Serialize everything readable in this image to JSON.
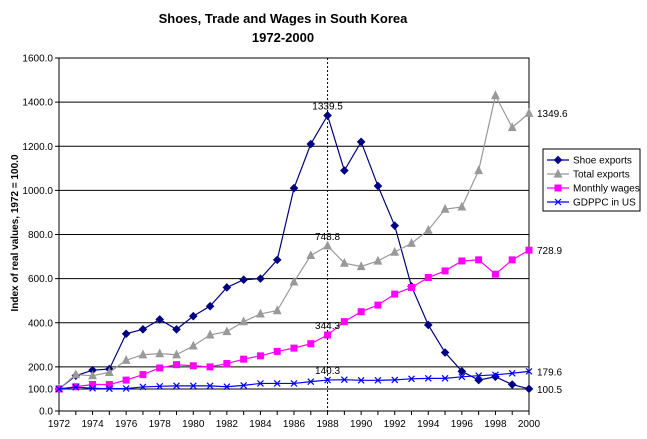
{
  "chart_data": {
    "type": "line",
    "title": "Shoes, Trade and Wages in South Korea",
    "subtitle": "1972-2000",
    "ylabel": "Index of real values, 1972 = 100.0",
    "xlabel": "",
    "ylim": [
      0,
      1600
    ],
    "xlim": [
      1972,
      2000
    ],
    "yticks": [
      "0.0",
      "100.0",
      "200.0",
      "400.0",
      "600.0",
      "800.0",
      "1000.0",
      "1200.0",
      "1400.0",
      "1600.0"
    ],
    "xticks": [
      1972,
      1974,
      1976,
      1978,
      1980,
      1982,
      1984,
      1986,
      1988,
      1990,
      1992,
      1994,
      1996,
      1998,
      2000
    ],
    "grid": "horizontal",
    "legend": "right",
    "x": [
      1972,
      1973,
      1974,
      1975,
      1976,
      1977,
      1978,
      1979,
      1980,
      1981,
      1982,
      1983,
      1984,
      1985,
      1986,
      1987,
      1988,
      1989,
      1990,
      1991,
      1992,
      1993,
      1994,
      1995,
      1996,
      1997,
      1998,
      1999,
      2000
    ],
    "series": [
      {
        "name": "Shoe exports",
        "color": "#000080",
        "marker": "diamond",
        "values": [
          100,
          160,
          185,
          190,
          350,
          370,
          415,
          370,
          430,
          475,
          560,
          595,
          600,
          685,
          1010,
          1210,
          1339.5,
          1090,
          1220,
          1020,
          840,
          565,
          390,
          265,
          180,
          140,
          155,
          120,
          100.5
        ]
      },
      {
        "name": "Total exports",
        "color": "#999999",
        "marker": "triangle",
        "values": [
          100,
          165,
          160,
          175,
          230,
          255,
          260,
          255,
          295,
          345,
          360,
          405,
          440,
          455,
          585,
          705,
          748.8,
          670,
          655,
          680,
          720,
          760,
          820,
          915,
          925,
          1090,
          1430,
          1285,
          1349.6
        ]
      },
      {
        "name": "Monthly wages",
        "color": "#ff00ff",
        "marker": "square",
        "values": [
          100,
          110,
          120,
          120,
          140,
          165,
          195,
          210,
          205,
          200,
          215,
          235,
          250,
          270,
          285,
          305,
          344.3,
          405,
          450,
          480,
          530,
          560,
          605,
          635,
          680,
          685,
          620,
          685,
          728.9
        ]
      },
      {
        "name": "GDPPC in US",
        "color": "#0000ff",
        "marker": "x",
        "values": [
          100,
          108,
          103,
          101,
          102,
          109,
          112,
          114,
          114,
          114,
          110,
          116,
          125,
          125,
          125,
          133,
          140.3,
          142,
          139,
          139,
          141,
          146,
          148,
          148,
          155,
          160,
          164,
          171,
          179.6
        ]
      }
    ],
    "annotations": [
      {
        "text": "1339.5",
        "x": 1988,
        "y": 1339.5
      },
      {
        "text": "748.8",
        "x": 1988,
        "y": 748.8
      },
      {
        "text": "344.3",
        "x": 1988,
        "y": 344.3
      },
      {
        "text": "140.3",
        "x": 1988,
        "y": 140.3
      },
      {
        "text": "1349.6",
        "x": 2000,
        "y": 1349.6
      },
      {
        "text": "728.9",
        "x": 2000,
        "y": 728.9
      },
      {
        "text": "179.6",
        "x": 2000,
        "y": 179.6
      },
      {
        "text": "100.5",
        "x": 2000,
        "y": 100.5
      }
    ],
    "reference_line": {
      "x": 1988,
      "style": "dotted"
    }
  }
}
